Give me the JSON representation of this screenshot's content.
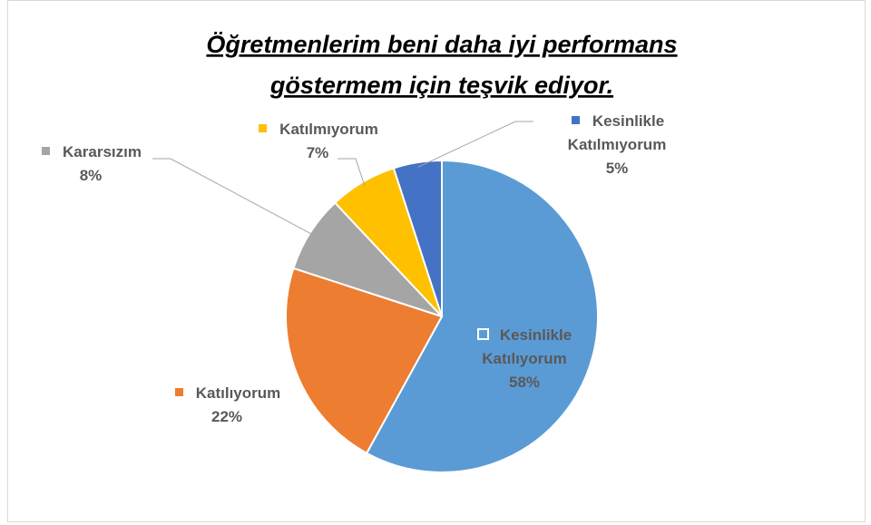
{
  "chart_data": {
    "type": "pie",
    "title": [
      "Öğretmenlerim  beni daha iyi performans",
      "göstermem için teşvik ediyor."
    ],
    "categories": [
      "Kesinlikle Katılıyorum",
      "Katılıyorum",
      "Kararsızım",
      "Katılmıyorum",
      "Kesinlikle Katılmıyorum"
    ],
    "values": [
      58,
      22,
      8,
      7,
      5
    ],
    "value_labels": [
      "58%",
      "22%",
      "8%",
      "7%",
      "5%"
    ],
    "colors": [
      "#5b9bd5",
      "#ed7d31",
      "#a5a5a5",
      "#ffc000",
      "#4472c4"
    ]
  }
}
